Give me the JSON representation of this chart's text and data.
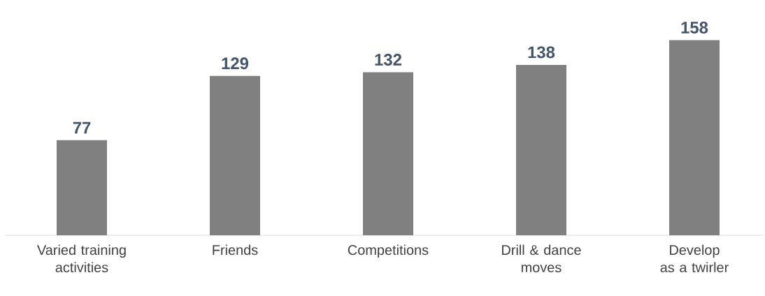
{
  "chart_data": {
    "type": "bar",
    "categories": [
      "Varied training activities",
      "Friends",
      "Competitions",
      "Drill & dance moves",
      "Develop as a twirler"
    ],
    "values": [
      77,
      129,
      132,
      138,
      158
    ],
    "color": "#808080",
    "data_labels": true
  }
}
